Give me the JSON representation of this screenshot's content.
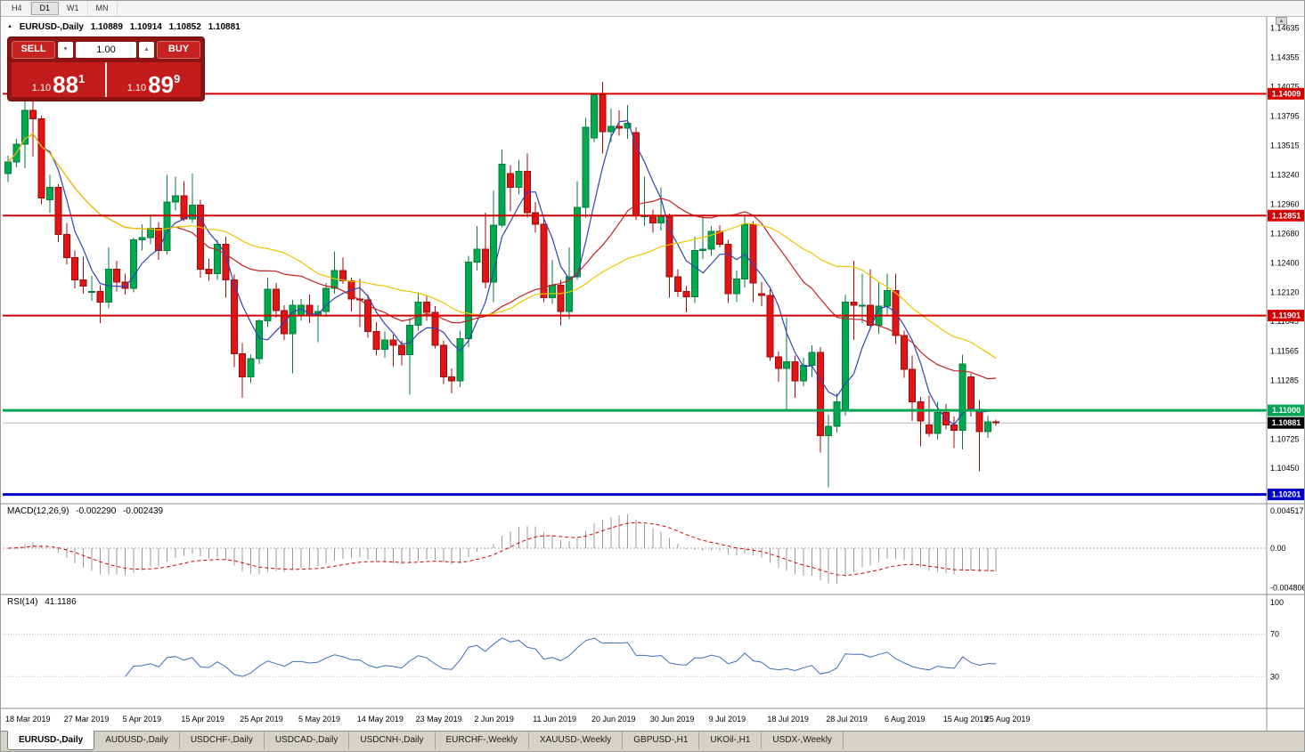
{
  "toolbar": {
    "periods": [
      "H4",
      "D1",
      "W1",
      "MN"
    ]
  },
  "chart": {
    "title": "EURUSD-,Daily",
    "open": "1.10889",
    "high": "1.10914",
    "low": "1.10852",
    "close": "1.10881"
  },
  "icons": {
    "one_click_toggle": "▲",
    "volume_down": "▼",
    "volume_up": "▲",
    "scroll_up": "▲"
  },
  "one_click": {
    "sell_label": "SELL",
    "buy_label": "BUY",
    "volume": "1.00",
    "sell_price_main": "1.10",
    "sell_price_big": "88",
    "sell_price_sup": "1",
    "buy_price_main": "1.10",
    "buy_price_big": "89",
    "buy_price_sup": "9"
  },
  "indicators": {
    "macd": {
      "label": "MACD(12,26,9)",
      "value_main": "-0.002290",
      "value_signal": "-0.002439",
      "axis": [
        "0.004517",
        "0.00",
        "-0.004806"
      ]
    },
    "rsi": {
      "label": "RSI(14)",
      "value": "41.1186",
      "axis": [
        "100",
        "70",
        "30"
      ],
      "levels": [
        70,
        30
      ]
    }
  },
  "price_axis": {
    "labels": [
      "1.14635",
      "1.14355",
      "1.14075",
      "1.13795",
      "1.13515",
      "1.13240",
      "1.12960",
      "1.12680",
      "1.12400",
      "1.12120",
      "1.11845",
      "1.11565",
      "1.11285",
      "1.10725",
      "1.10450"
    ],
    "current_price": "1.10881"
  },
  "levels": [
    {
      "price": 1.14009,
      "label": "1.14009",
      "color": "#d40000",
      "width": 2
    },
    {
      "price": 1.12851,
      "label": "1.12851",
      "color": "#d40000",
      "width": 2
    },
    {
      "price": 1.11901,
      "label": "1.11901",
      "color": "#d40000",
      "width": 2
    },
    {
      "price": 1.11,
      "label": "1.11000",
      "color": "#00a651",
      "width": 3
    },
    {
      "price": 1.10201,
      "label": "1.10201",
      "color": "#0000c8",
      "width": 3
    }
  ],
  "tabs": [
    {
      "label": "EURUSD-,Daily",
      "active": true
    },
    {
      "label": "AUDUSD-,Daily"
    },
    {
      "label": "USDCHF-,Daily"
    },
    {
      "label": "USDCAD-,Daily"
    },
    {
      "label": "USDCNH-,Daily"
    },
    {
      "label": "EURCHF-,Weekly"
    },
    {
      "label": "XAUUSD-,Weekly"
    },
    {
      "label": "GBPUSD-,H1"
    },
    {
      "label": "UKOil-,H1"
    },
    {
      "label": "USDX-,Weekly"
    }
  ],
  "chart_data": {
    "type": "candlestick",
    "symbol": "EURUSD-",
    "timeframe": "Daily",
    "y_range": [
      1.1014,
      1.1468
    ],
    "colors": {
      "up": "#00a94e",
      "up_border": "#067d3c",
      "down": "#e01616",
      "down_border": "#9e0b0b",
      "macd_hist": "#9a9a9a",
      "macd_signal": "#d40000",
      "rsi_line": "#3d6fb5"
    },
    "moving_averages": [
      {
        "period": 5,
        "color": "#3142b8"
      },
      {
        "period": 21,
        "color": "#c32222"
      },
      {
        "period": 34,
        "color": "#eec500"
      }
    ],
    "macd": {
      "fast": 12,
      "slow": 26,
      "signal": 9,
      "range": [
        -0.004806,
        0.004517
      ]
    },
    "rsi": {
      "period": 14,
      "range": [
        0,
        100
      ]
    },
    "dates_axis": [
      {
        "label": "18 Mar 2019",
        "index": 0
      },
      {
        "label": "27 Mar 2019",
        "index": 7
      },
      {
        "label": "5 Apr 2019",
        "index": 14
      },
      {
        "label": "15 Apr 2019",
        "index": 21
      },
      {
        "label": "25 Apr 2019",
        "index": 28
      },
      {
        "label": "5 May 2019",
        "index": 35
      },
      {
        "label": "14 May 2019",
        "index": 42
      },
      {
        "label": "23 May 2019",
        "index": 49
      },
      {
        "label": "2 Jun 2019",
        "index": 56
      },
      {
        "label": "11 Jun 2019",
        "index": 63
      },
      {
        "label": "20 Jun 2019",
        "index": 70
      },
      {
        "label": "30 Jun 2019",
        "index": 77
      },
      {
        "label": "9 Jul 2019",
        "index": 84
      },
      {
        "label": "18 Jul 2019",
        "index": 91
      },
      {
        "label": "28 Jul 2019",
        "index": 98
      },
      {
        "label": "6 Aug 2019",
        "index": 105
      },
      {
        "label": "15 Aug 2019",
        "index": 112
      },
      {
        "label": "25 Aug 2019",
        "index": 117
      }
    ],
    "candles": [
      [
        1.1325,
        1.1342,
        1.1317,
        1.1336
      ],
      [
        1.1336,
        1.1358,
        1.1331,
        1.1353
      ],
      [
        1.1353,
        1.14,
        1.133,
        1.1385
      ],
      [
        1.1385,
        1.1397,
        1.1341,
        1.1377
      ],
      [
        1.1377,
        1.138,
        1.1296,
        1.1302
      ],
      [
        1.13,
        1.1324,
        1.1288,
        1.1312
      ],
      [
        1.1312,
        1.1315,
        1.126,
        1.1267
      ],
      [
        1.1267,
        1.1278,
        1.1239,
        1.1245
      ],
      [
        1.1245,
        1.1252,
        1.1216,
        1.1224
      ],
      [
        1.1224,
        1.1246,
        1.1211,
        1.1218
      ],
      [
        1.1213,
        1.1228,
        1.1204,
        1.1213
      ],
      [
        1.1213,
        1.1219,
        1.1183,
        1.1203
      ],
      [
        1.1203,
        1.1255,
        1.1197,
        1.1234
      ],
      [
        1.1234,
        1.1242,
        1.1213,
        1.1222
      ],
      [
        1.1222,
        1.123,
        1.121,
        1.1216
      ],
      [
        1.1216,
        1.1264,
        1.1212,
        1.1262
      ],
      [
        1.1262,
        1.1277,
        1.1252,
        1.1264
      ],
      [
        1.1264,
        1.1286,
        1.1258,
        1.1273
      ],
      [
        1.1273,
        1.1279,
        1.1243,
        1.1252
      ],
      [
        1.1252,
        1.1324,
        1.1248,
        1.1298
      ],
      [
        1.1298,
        1.1322,
        1.129,
        1.1304
      ],
      [
        1.1304,
        1.1318,
        1.128,
        1.1282
      ],
      [
        1.1282,
        1.1325,
        1.1278,
        1.1295
      ],
      [
        1.1295,
        1.13,
        1.1226,
        1.1234
      ],
      [
        1.1234,
        1.1244,
        1.1223,
        1.123
      ],
      [
        1.123,
        1.1262,
        1.1224,
        1.1258
      ],
      [
        1.1258,
        1.1265,
        1.1207,
        1.1224
      ],
      [
        1.1224,
        1.1229,
        1.1141,
        1.1154
      ],
      [
        1.1154,
        1.1164,
        1.1112,
        1.1132
      ],
      [
        1.1132,
        1.1153,
        1.1126,
        1.1149
      ],
      [
        1.1149,
        1.1187,
        1.1144,
        1.1185
      ],
      [
        1.1185,
        1.1226,
        1.1179,
        1.1215
      ],
      [
        1.1215,
        1.1221,
        1.1188,
        1.1195
      ],
      [
        1.1195,
        1.12,
        1.1167,
        1.1173
      ],
      [
        1.1173,
        1.1205,
        1.1135,
        1.12
      ],
      [
        1.119,
        1.1206,
        1.1185,
        1.12
      ],
      [
        1.12,
        1.121,
        1.1183,
        1.119
      ],
      [
        1.119,
        1.12,
        1.1165,
        1.1194
      ],
      [
        1.1194,
        1.1221,
        1.1189,
        1.1216
      ],
      [
        1.1216,
        1.1251,
        1.1211,
        1.1233
      ],
      [
        1.1233,
        1.1245,
        1.122,
        1.1223
      ],
      [
        1.1223,
        1.1226,
        1.1194,
        1.1206
      ],
      [
        1.1206,
        1.1225,
        1.1179,
        1.1205
      ],
      [
        1.1205,
        1.121,
        1.1169,
        1.1175
      ],
      [
        1.1175,
        1.1184,
        1.1152,
        1.1158
      ],
      [
        1.1158,
        1.1175,
        1.115,
        1.1167
      ],
      [
        1.1167,
        1.1172,
        1.1142,
        1.1162
      ],
      [
        1.1162,
        1.1166,
        1.1143,
        1.1153
      ],
      [
        1.1153,
        1.1188,
        1.1115,
        1.1181
      ],
      [
        1.1181,
        1.1212,
        1.1176,
        1.1203
      ],
      [
        1.1203,
        1.1209,
        1.1185,
        1.1193
      ],
      [
        1.1193,
        1.1199,
        1.1159,
        1.1162
      ],
      [
        1.1162,
        1.1166,
        1.1125,
        1.1132
      ],
      [
        1.1132,
        1.114,
        1.1116,
        1.1128
      ],
      [
        1.1128,
        1.1176,
        1.1122,
        1.1168
      ],
      [
        1.1168,
        1.1247,
        1.116,
        1.1241
      ],
      [
        1.1241,
        1.1275,
        1.1233,
        1.1253
      ],
      [
        1.1253,
        1.1288,
        1.1216,
        1.1222
      ],
      [
        1.1222,
        1.1309,
        1.1203,
        1.1276
      ],
      [
        1.1276,
        1.1348,
        1.1274,
        1.1334
      ],
      [
        1.1325,
        1.1333,
        1.1289,
        1.1312
      ],
      [
        1.1312,
        1.1338,
        1.1305,
        1.1327
      ],
      [
        1.1327,
        1.1344,
        1.1283,
        1.1288
      ],
      [
        1.1288,
        1.1298,
        1.1269,
        1.1277
      ],
      [
        1.1277,
        1.1283,
        1.1203,
        1.1207
      ],
      [
        1.1207,
        1.1243,
        1.1201,
        1.1219
      ],
      [
        1.1219,
        1.1224,
        1.1181,
        1.1194
      ],
      [
        1.1194,
        1.1255,
        1.1187,
        1.1227
      ],
      [
        1.1227,
        1.1318,
        1.1224,
        1.1293
      ],
      [
        1.1293,
        1.1378,
        1.1283,
        1.1369
      ],
      [
        1.1359,
        1.14,
        1.1355,
        1.14
      ],
      [
        1.14,
        1.1412,
        1.1344,
        1.1365
      ],
      [
        1.1365,
        1.1387,
        1.1355,
        1.137
      ],
      [
        1.137,
        1.1385,
        1.1361,
        1.1368
      ],
      [
        1.1368,
        1.139,
        1.1358,
        1.1373
      ],
      [
        1.1364,
        1.1369,
        1.1281,
        1.1285
      ],
      [
        1.1285,
        1.1322,
        1.1275,
        1.1285
      ],
      [
        1.1285,
        1.1291,
        1.1269,
        1.1278
      ],
      [
        1.1278,
        1.1312,
        1.1271,
        1.1284
      ],
      [
        1.1284,
        1.1287,
        1.1207,
        1.1227
      ],
      [
        1.1227,
        1.1234,
        1.1208,
        1.1213
      ],
      [
        1.1213,
        1.1218,
        1.1193,
        1.1208
      ],
      [
        1.1208,
        1.1265,
        1.1202,
        1.1252
      ],
      [
        1.1252,
        1.1286,
        1.1244,
        1.1253
      ],
      [
        1.1253,
        1.1275,
        1.1247,
        1.127
      ],
      [
        1.127,
        1.1276,
        1.1255,
        1.1258
      ],
      [
        1.1258,
        1.1262,
        1.1202,
        1.1211
      ],
      [
        1.1211,
        1.1233,
        1.1203,
        1.1225
      ],
      [
        1.1225,
        1.1285,
        1.1217,
        1.1277
      ],
      [
        1.1277,
        1.128,
        1.1203,
        1.1221
      ],
      [
        1.1211,
        1.1222,
        1.1199,
        1.1209
      ],
      [
        1.1209,
        1.1215,
        1.1147,
        1.1151
      ],
      [
        1.1151,
        1.1156,
        1.1127,
        1.114
      ],
      [
        1.114,
        1.1188,
        1.1101,
        1.1146
      ],
      [
        1.1146,
        1.1152,
        1.1112,
        1.1128
      ],
      [
        1.1128,
        1.115,
        1.1123,
        1.1143
      ],
      [
        1.1143,
        1.1162,
        1.1132,
        1.1155
      ],
      [
        1.1155,
        1.116,
        1.106,
        1.1076
      ],
      [
        1.1076,
        1.1096,
        1.1027,
        1.1085
      ],
      [
        1.1085,
        1.1116,
        1.1079,
        1.1108
      ],
      [
        1.11,
        1.121,
        1.1095,
        1.1203
      ],
      [
        1.1203,
        1.1242,
        1.1167,
        1.12
      ],
      [
        1.12,
        1.123,
        1.1183,
        1.12
      ],
      [
        1.12,
        1.1234,
        1.1179,
        1.1181
      ],
      [
        1.1181,
        1.1222,
        1.1173,
        1.1199
      ],
      [
        1.1199,
        1.123,
        1.1191,
        1.1214
      ],
      [
        1.1214,
        1.123,
        1.1163,
        1.1171
      ],
      [
        1.1171,
        1.1176,
        1.1131,
        1.1139
      ],
      [
        1.1139,
        1.1152,
        1.109,
        1.1108
      ],
      [
        1.1108,
        1.1113,
        1.1066,
        1.109
      ],
      [
        1.1086,
        1.1114,
        1.1075,
        1.1078
      ],
      [
        1.1078,
        1.1108,
        1.1072,
        1.1098
      ],
      [
        1.1098,
        1.1106,
        1.1082,
        1.1086
      ],
      [
        1.1086,
        1.1094,
        1.1064,
        1.1081
      ],
      [
        1.1081,
        1.1153,
        1.1063,
        1.1144
      ],
      [
        1.1132,
        1.1135,
        1.1094,
        1.1101
      ],
      [
        1.1101,
        1.111,
        1.1042,
        1.108
      ],
      [
        1.108,
        1.1095,
        1.1074,
        1.10889
      ],
      [
        1.10889,
        1.10914,
        1.10852,
        1.10881
      ]
    ]
  }
}
